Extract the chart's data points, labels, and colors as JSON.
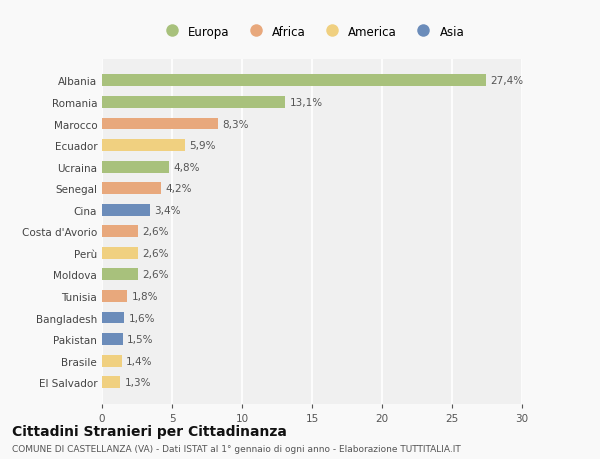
{
  "categories": [
    "Albania",
    "Romania",
    "Marocco",
    "Ecuador",
    "Ucraina",
    "Senegal",
    "Cina",
    "Costa d'Avorio",
    "Perù",
    "Moldova",
    "Tunisia",
    "Bangladesh",
    "Pakistan",
    "Brasile",
    "El Salvador"
  ],
  "values": [
    27.4,
    13.1,
    8.3,
    5.9,
    4.8,
    4.2,
    3.4,
    2.6,
    2.6,
    2.6,
    1.8,
    1.6,
    1.5,
    1.4,
    1.3
  ],
  "labels": [
    "27,4%",
    "13,1%",
    "8,3%",
    "5,9%",
    "4,8%",
    "4,2%",
    "3,4%",
    "2,6%",
    "2,6%",
    "2,6%",
    "1,8%",
    "1,6%",
    "1,5%",
    "1,4%",
    "1,3%"
  ],
  "colors": [
    "#a8c17c",
    "#a8c17c",
    "#e8a87c",
    "#f0d080",
    "#a8c17c",
    "#e8a87c",
    "#6b8cba",
    "#e8a87c",
    "#f0d080",
    "#a8c17c",
    "#e8a87c",
    "#6b8cba",
    "#6b8cba",
    "#f0d080",
    "#f0d080"
  ],
  "legend_labels": [
    "Europa",
    "Africa",
    "America",
    "Asia"
  ],
  "legend_colors": [
    "#a8c17c",
    "#e8a87c",
    "#f0d080",
    "#6b8cba"
  ],
  "title": "Cittadini Stranieri per Cittadinanza",
  "subtitle": "COMUNE DI CASTELLANZA (VA) - Dati ISTAT al 1° gennaio di ogni anno - Elaborazione TUTTITALIA.IT",
  "xlim": [
    0,
    30
  ],
  "xticks": [
    0,
    5,
    10,
    15,
    20,
    25,
    30
  ],
  "background_color": "#f9f9f9",
  "plot_bg_color": "#f0f0f0",
  "grid_color": "#ffffff",
  "bar_height": 0.55,
  "label_fontsize": 7.5,
  "tick_fontsize": 7.5,
  "title_fontsize": 10,
  "subtitle_fontsize": 6.5
}
